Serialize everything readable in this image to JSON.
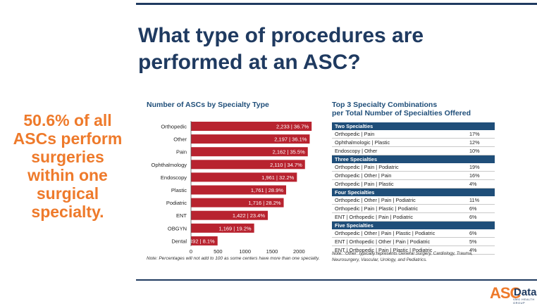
{
  "slide": {
    "title_line1": "What type of procedures are",
    "title_line2": "performed at an ASC?",
    "callout": [
      "50.6% of all",
      "ASCs perform",
      "surgeries",
      "within one",
      "surgical",
      "specialty."
    ]
  },
  "chart_data": {
    "type": "bar",
    "orientation": "horizontal",
    "title": "Number of ASCs by Specialty Type",
    "categories": [
      "Orthopedic",
      "Other",
      "Pain",
      "Ophthalmology",
      "Endoscopy",
      "Plastic",
      "Podiatric",
      "ENT",
      "OBGYN",
      "Dental"
    ],
    "values": [
      2233,
      2197,
      2162,
      2110,
      1961,
      1761,
      1716,
      1422,
      1169,
      492
    ],
    "data_labels": [
      "2,233 | 36.7%",
      "2,197 | 36.1%",
      "2,162 | 35.5%",
      "2,110 | 34.7%",
      "1,961 | 32.2%",
      "1,761 | 28.9%",
      "1,716 | 28.2%",
      "1,422 | 23.4%",
      "1,169 | 19.2%",
      "492 | 8.1%"
    ],
    "xlim": [
      0,
      2400
    ],
    "x_ticks": [
      0,
      500,
      1000,
      1500,
      2000
    ],
    "bar_color": "#b8232f",
    "note": "Note: Percentages will not add to 100 as some centers have more than one specialty."
  },
  "combo_table": {
    "title_line1": "Top 3 Specialty Combinations",
    "title_line2": "per Total Number of Specialties Offered",
    "groups": [
      {
        "header": "Two Specialties",
        "rows": [
          {
            "label": "Orthopedic | Pain",
            "pct": "17%"
          },
          {
            "label": "Ophthalmologic | Plastic",
            "pct": "12%"
          },
          {
            "label": "Endoscopy | Other",
            "pct": "10%"
          }
        ]
      },
      {
        "header": "Three Specialties",
        "rows": [
          {
            "label": "Orthopedic | Pain | Podiatric",
            "pct": "19%"
          },
          {
            "label": "Orthopedic | Other | Pain",
            "pct": "16%"
          },
          {
            "label": "Orthopedic | Pain | Plastic",
            "pct": "4%"
          }
        ]
      },
      {
        "header": "Four Specialties",
        "rows": [
          {
            "label": "Orthopedic | Other | Pain | Podiatric",
            "pct": "11%"
          },
          {
            "label": "Orthopedic | Pain | Plastic | Podiatric",
            "pct": "6%"
          },
          {
            "label": "ENT | Orthopedic | Pain | Podiatric",
            "pct": "6%"
          }
        ]
      },
      {
        "header": "Five Specialties",
        "rows": [
          {
            "label": "Orthopedic | Other | Pain | Plastic | Podiatric",
            "pct": "6%"
          },
          {
            "label": "ENT | Orthopedic | Other | Pain | Podiatric",
            "pct": "5%"
          },
          {
            "label": "ENT | Orthopedic | Pain | Plastic | Podiatric",
            "pct": "4%"
          }
        ]
      }
    ],
    "note": "Note: \"Other\" typically represents General Surgery, Cardiology, Trauma, Neurosurgery, Vascular, Urology, and Pediatrics."
  },
  "logo": {
    "part1": "ASC",
    "part2": "Data",
    "sub": "VMG HEALTH GROUP"
  },
  "colors": {
    "navy": "#1f3a60",
    "orange": "#ee7a2b",
    "table_header": "#1f4e79",
    "bar": "#b8232f"
  }
}
